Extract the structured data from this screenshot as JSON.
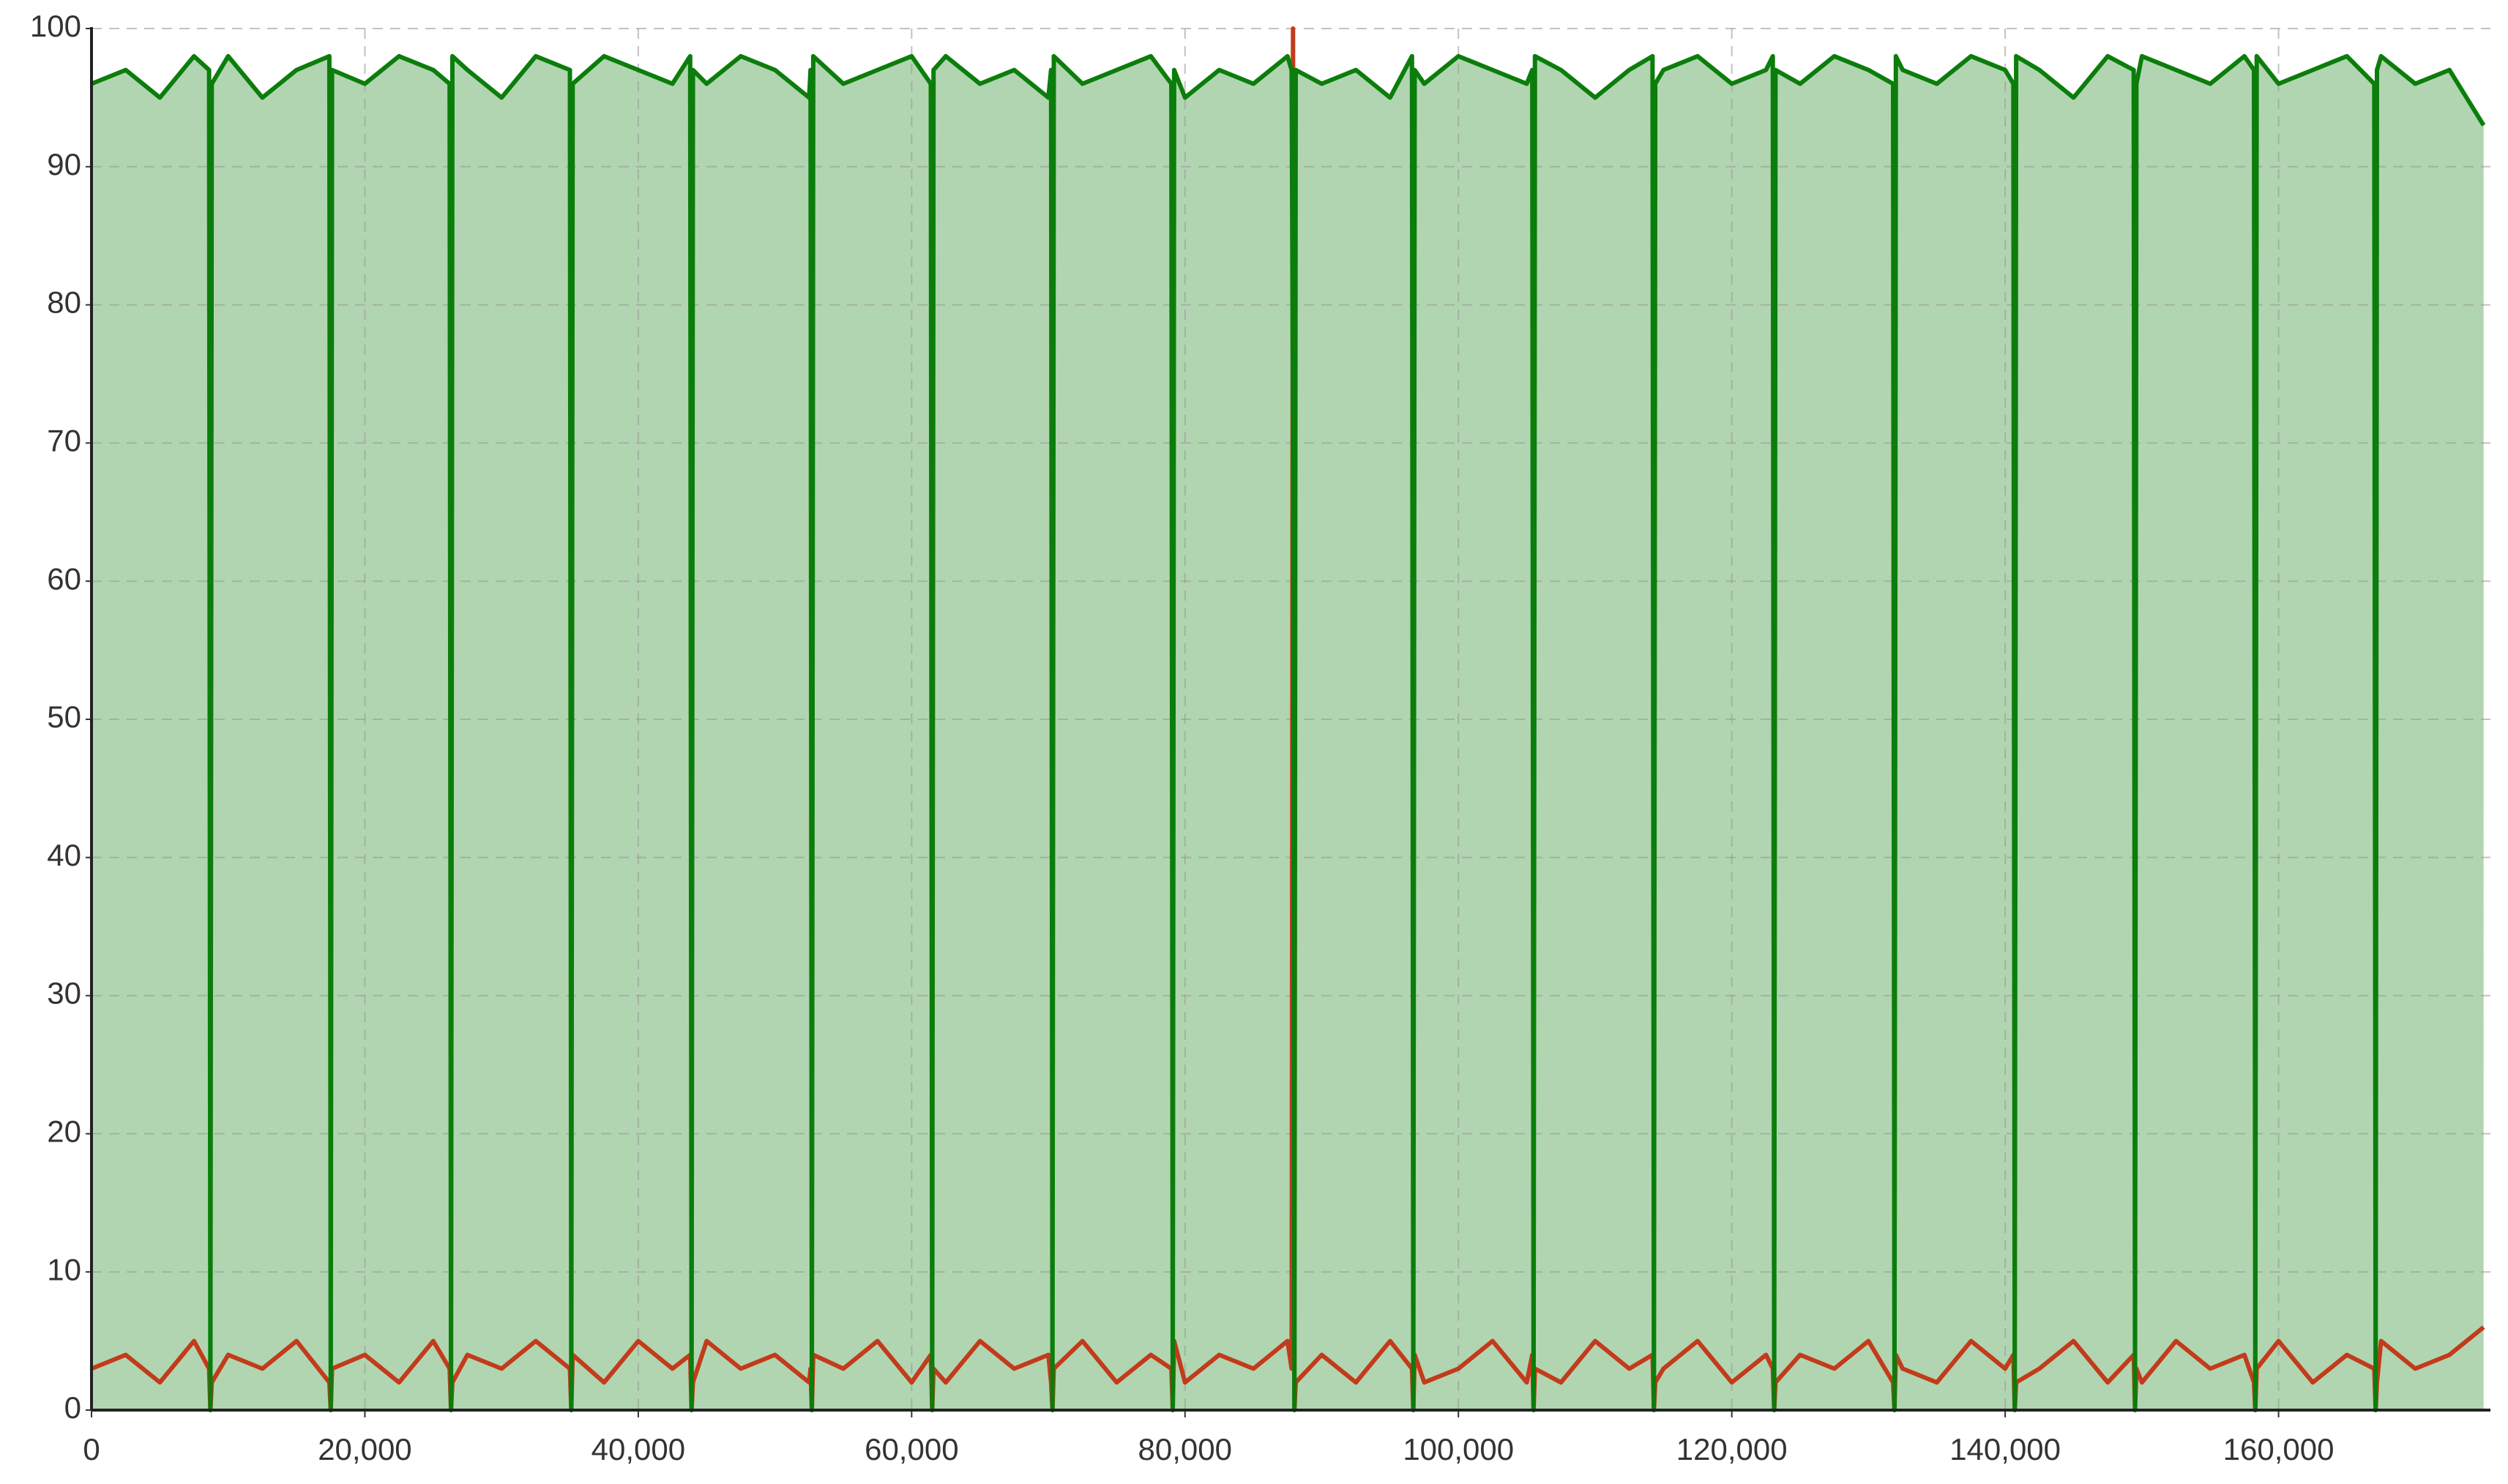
{
  "chart_data": {
    "type": "line",
    "x": [
      0,
      2500,
      5000,
      7500,
      8600,
      8700,
      8800,
      10000,
      12500,
      15000,
      17400,
      17500,
      17600,
      20000,
      22500,
      25000,
      26200,
      26300,
      26400,
      27500,
      30000,
      32500,
      35000,
      35100,
      35200,
      37500,
      40000,
      42500,
      43800,
      43900,
      44000,
      45000,
      47500,
      50000,
      52500,
      52600,
      52700,
      52800,
      55000,
      57500,
      60000,
      61400,
      61500,
      61600,
      62500,
      65000,
      67500,
      70000,
      70200,
      70300,
      70400,
      72500,
      75000,
      77500,
      79000,
      79100,
      79200,
      80000,
      82500,
      85000,
      87500,
      87800,
      87900,
      88000,
      88100,
      90000,
      92500,
      95000,
      96600,
      96700,
      96800,
      97500,
      100000,
      102500,
      105000,
      105400,
      105500,
      105600,
      107500,
      110000,
      112500,
      114200,
      114300,
      114400,
      115000,
      117500,
      120000,
      122500,
      123000,
      123100,
      123200,
      125000,
      127500,
      130000,
      131800,
      131900,
      132000,
      132500,
      135000,
      137500,
      140000,
      140600,
      140700,
      140800,
      142500,
      145000,
      147500,
      149400,
      149500,
      149600,
      150000,
      152500,
      155000,
      157500,
      158200,
      158300,
      158400,
      160000,
      162500,
      165000,
      167000,
      167100,
      167200,
      167500,
      170000,
      172500,
      175000
    ],
    "series": [
      {
        "name": "green",
        "color": "#0b7d0b",
        "fill": true,
        "values": [
          96,
          97,
          95,
          98,
          97,
          0,
          96,
          98,
          95,
          97,
          98,
          0,
          97,
          96,
          98,
          97,
          96,
          0,
          98,
          97,
          95,
          98,
          97,
          0,
          96,
          98,
          97,
          96,
          98,
          0,
          97,
          96,
          98,
          97,
          95,
          97,
          0,
          98,
          96,
          97,
          98,
          96,
          0,
          97,
          98,
          96,
          97,
          95,
          97,
          0,
          98,
          96,
          97,
          98,
          96,
          0,
          97,
          95,
          97,
          96,
          98,
          97,
          71,
          0,
          97,
          96,
          97,
          95,
          98,
          0,
          97,
          96,
          98,
          97,
          96,
          97,
          0,
          98,
          97,
          95,
          97,
          98,
          0,
          96,
          97,
          98,
          96,
          97,
          98,
          0,
          97,
          96,
          98,
          97,
          96,
          0,
          98,
          97,
          96,
          98,
          97,
          96,
          0,
          98,
          97,
          95,
          98,
          97,
          0,
          96,
          98,
          97,
          96,
          98,
          97,
          0,
          98,
          96,
          97,
          98,
          96,
          0,
          97,
          98,
          96,
          97,
          93
        ]
      },
      {
        "name": "red",
        "color": "#c23b1b",
        "fill": false,
        "values": [
          3,
          4,
          2,
          5,
          3,
          0,
          2,
          4,
          3,
          5,
          2,
          0,
          3,
          4,
          2,
          5,
          3,
          0,
          2,
          4,
          3,
          5,
          3,
          0,
          4,
          2,
          5,
          3,
          4,
          0,
          2,
          5,
          3,
          4,
          2,
          3,
          0,
          4,
          3,
          5,
          2,
          4,
          0,
          3,
          2,
          5,
          3,
          4,
          2,
          0,
          3,
          5,
          2,
          4,
          3,
          0,
          5,
          2,
          4,
          3,
          5,
          3,
          100,
          0,
          2,
          4,
          2,
          5,
          3,
          0,
          4,
          2,
          3,
          5,
          2,
          4,
          0,
          3,
          2,
          5,
          3,
          4,
          0,
          2,
          3,
          5,
          2,
          4,
          3,
          0,
          2,
          4,
          3,
          5,
          2,
          0,
          4,
          3,
          2,
          5,
          3,
          4,
          0,
          2,
          3,
          5,
          2,
          4,
          0,
          3,
          2,
          5,
          3,
          4,
          2,
          0,
          3,
          5,
          2,
          4,
          3,
          0,
          2,
          5,
          3,
          4,
          6
        ]
      }
    ],
    "xlim": [
      0,
      175500
    ],
    "ylim": [
      0,
      100
    ],
    "xticks": [
      0,
      {
        "value": 20000,
        "label": "20,000"
      },
      {
        "value": 40000,
        "label": "40,000"
      },
      {
        "value": 60000,
        "label": "60,000"
      },
      {
        "value": 80000,
        "label": "80,000"
      },
      {
        "value": 100000,
        "label": "100,000"
      },
      {
        "value": 120000,
        "label": "120,000"
      },
      {
        "value": 140000,
        "label": "140,000"
      },
      {
        "value": 160000,
        "label": "160,000"
      }
    ],
    "yticks": [
      0,
      10,
      20,
      30,
      40,
      50,
      60,
      70,
      80,
      90,
      100
    ],
    "grid": true
  }
}
